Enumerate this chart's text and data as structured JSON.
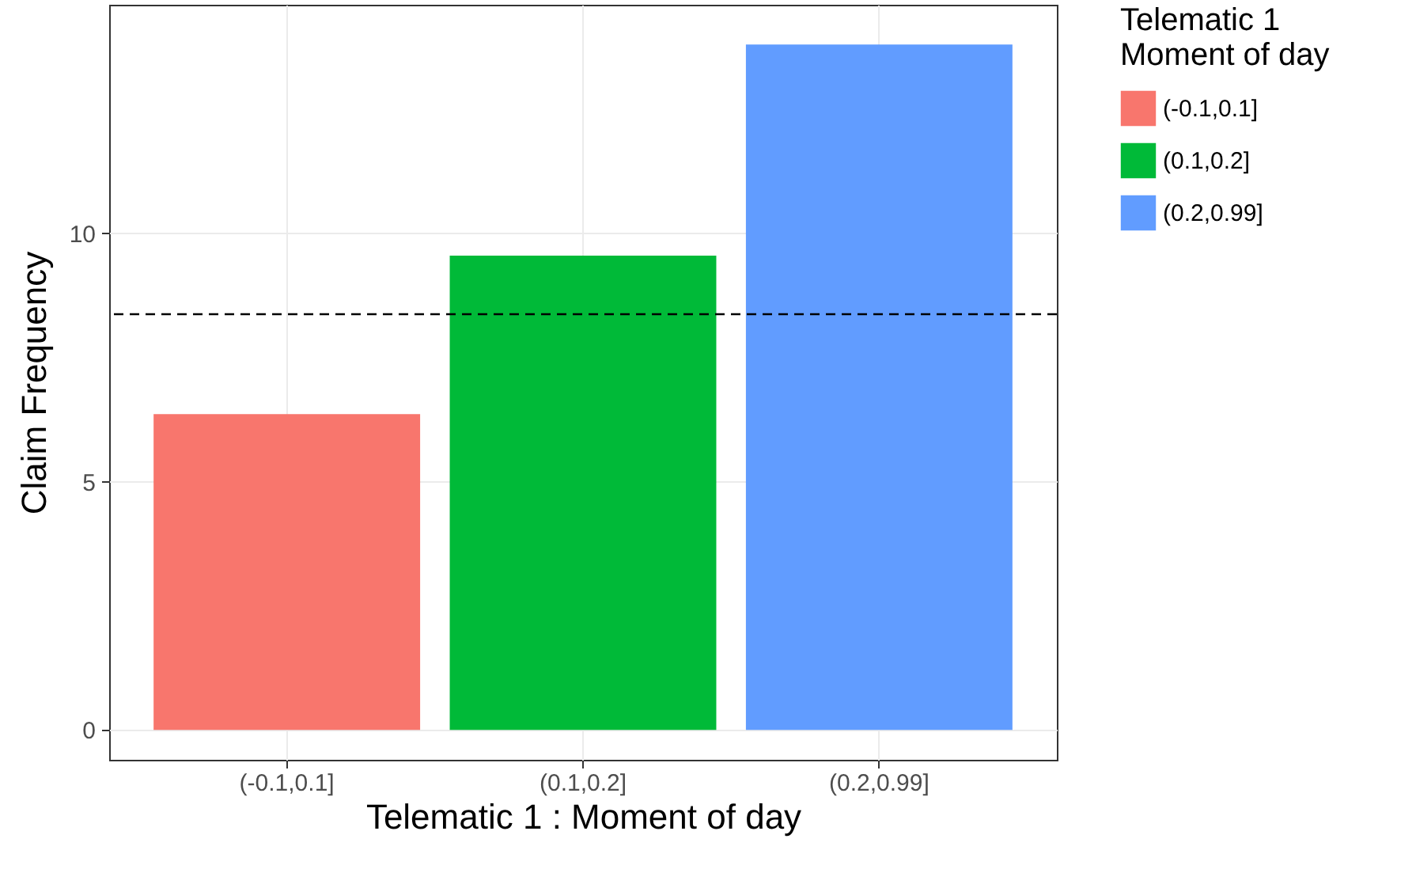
{
  "chart_data": {
    "type": "bar",
    "xlabel": "Telematic 1 : Moment of day",
    "ylabel": "Claim Frequency",
    "legend_title": "Telematic 1\nMoment of day",
    "categories": [
      "(-0.1,0.1]",
      "(0.1,0.2]",
      "(0.2,0.99]"
    ],
    "series": [
      {
        "name": "(-0.1,0.1]",
        "color": "#f8766d",
        "values": [
          6.36,
          null,
          null
        ]
      },
      {
        "name": "(0.1,0.2]",
        "color": "#00ba38",
        "values": [
          null,
          9.55,
          null
        ]
      },
      {
        "name": "(0.2,0.99]",
        "color": "#619cff",
        "values": [
          null,
          null,
          13.8
        ]
      }
    ],
    "ylim": [
      -0.6,
      14.6
    ],
    "yticks": [
      0,
      5,
      10
    ],
    "grid": true,
    "legend": "right",
    "ref_lines": [
      {
        "axis": "y",
        "value": 8.37,
        "color": "#000000",
        "line_style": "dashed"
      }
    ]
  }
}
